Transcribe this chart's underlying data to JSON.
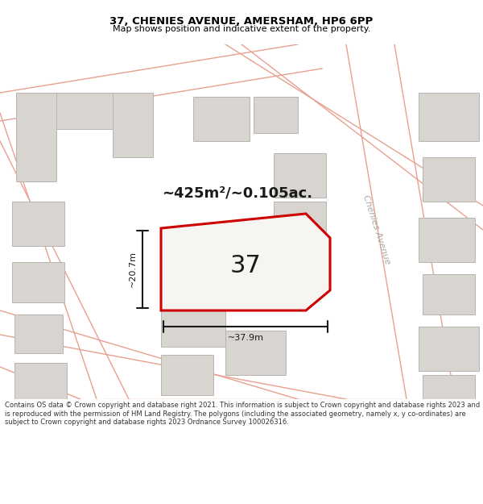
{
  "title_line1": "37, CHENIES AVENUE, AMERSHAM, HP6 6PP",
  "title_line2": "Map shows position and indicative extent of the property.",
  "area_text": "~425m²/~0.105ac.",
  "number_label": "37",
  "dim_width": "~37.9m",
  "dim_height": "~20.7m",
  "road_label": "Chenies Avenue",
  "footer_text": "Contains OS data © Crown copyright and database right 2021. This information is subject to Crown copyright and database rights 2023 and is reproduced with the permission of HM Land Registry. The polygons (including the associated geometry, namely x, y co-ordinates) are subject to Crown copyright and database rights 2023 Ordnance Survey 100026316.",
  "map_bg": "#f7f5f2",
  "building_fill": "#d8d5d0",
  "building_edge": "#b8b5b0",
  "property_outline_color": "#cc0000",
  "property_fill": "#f7f5f2",
  "dimension_color": "#1a1a1a",
  "road_line_color": "#e8a090",
  "road_center_color": "#f0d8d0",
  "text_color": "#333333",
  "road_text_color": "#aaa8a3"
}
